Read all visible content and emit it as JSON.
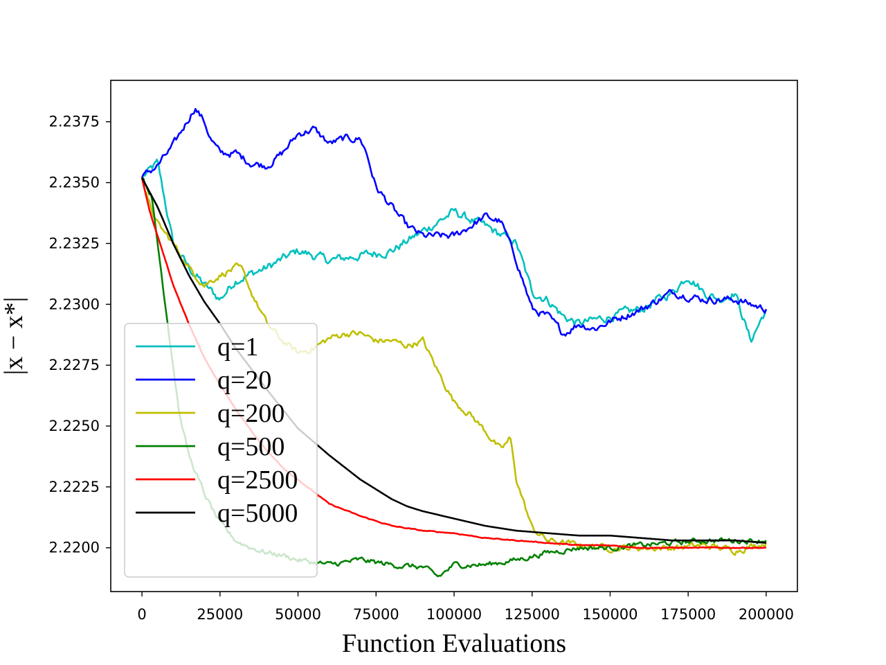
{
  "chart_data": {
    "type": "line",
    "xlabel": "Function Evaluations",
    "ylabel": "|x − x*|",
    "xlim": [
      -10000,
      210000
    ],
    "ylim": [
      2.2182,
      2.2392
    ],
    "xticks": [
      0,
      25000,
      50000,
      75000,
      100000,
      125000,
      150000,
      175000,
      200000
    ],
    "xtick_labels": [
      "0",
      "25000",
      "50000",
      "75000",
      "100000",
      "125000",
      "150000",
      "175000",
      "200000"
    ],
    "yticks": [
      2.22,
      2.2225,
      2.225,
      2.2275,
      2.23,
      2.2325,
      2.235,
      2.2375
    ],
    "ytick_labels": [
      "2.2200",
      "2.2225",
      "2.2250",
      "2.2275",
      "2.2300",
      "2.2325",
      "2.2350",
      "2.2375"
    ],
    "legend_position": "lower-left",
    "grid": false,
    "series": [
      {
        "name": "q=1",
        "color": "#00bfbf",
        "noise": 0.0003,
        "x": [
          0,
          5000,
          10000,
          15000,
          20000,
          25000,
          30000,
          40000,
          50000,
          60000,
          70000,
          80000,
          90000,
          100000,
          110000,
          120000,
          125000,
          130000,
          135000,
          140000,
          150000,
          160000,
          170000,
          175000,
          180000,
          185000,
          190000,
          195000,
          200000
        ],
        "y": [
          2.2352,
          2.2358,
          2.2325,
          2.2315,
          2.2308,
          2.2302,
          2.231,
          2.2315,
          2.2322,
          2.2318,
          2.232,
          2.2322,
          2.233,
          2.2338,
          2.2332,
          2.2325,
          2.2305,
          2.2302,
          2.2295,
          2.2292,
          2.2295,
          2.2298,
          2.2305,
          2.2312,
          2.2305,
          2.2302,
          2.2305,
          2.2285,
          2.2298
        ]
      },
      {
        "name": "q=20",
        "color": "#0000ff",
        "noise": 0.00025,
        "x": [
          0,
          5000,
          10000,
          17000,
          20000,
          22000,
          25000,
          30000,
          35000,
          40000,
          45000,
          50000,
          55000,
          60000,
          65000,
          70000,
          72000,
          75000,
          80000,
          85000,
          90000,
          100000,
          105000,
          110000,
          115000,
          120000,
          125000,
          130000,
          135000,
          140000,
          145000,
          150000,
          160000,
          170000,
          180000,
          190000,
          200000
        ],
        "y": [
          2.2352,
          2.2357,
          2.2365,
          2.2381,
          2.2375,
          2.2368,
          2.2362,
          2.2362,
          2.2358,
          2.2357,
          2.2362,
          2.237,
          2.2372,
          2.2366,
          2.2368,
          2.2368,
          2.2362,
          2.2348,
          2.234,
          2.2332,
          2.2328,
          2.2328,
          2.2332,
          2.2336,
          2.2334,
          2.2318,
          2.2298,
          2.2295,
          2.2288,
          2.2292,
          2.229,
          2.2293,
          2.2298,
          2.2305,
          2.2302,
          2.2302,
          2.2298
        ]
      },
      {
        "name": "q=200",
        "color": "#bfbf00",
        "noise": 0.00022,
        "x": [
          0,
          2000,
          5000,
          10000,
          15000,
          20000,
          25000,
          30000,
          32000,
          35000,
          40000,
          45000,
          50000,
          55000,
          60000,
          65000,
          70000,
          75000,
          80000,
          85000,
          90000,
          95000,
          100000,
          105000,
          110000,
          115000,
          118000,
          120000,
          125000,
          130000,
          140000,
          150000,
          160000,
          170000,
          180000,
          190000,
          200000
        ],
        "y": [
          2.2352,
          2.2342,
          2.2333,
          2.2325,
          2.2315,
          2.2308,
          2.2312,
          2.2315,
          2.2314,
          2.2305,
          2.2292,
          2.2285,
          2.228,
          2.2282,
          2.2286,
          2.2288,
          2.2288,
          2.2285,
          2.2285,
          2.2283,
          2.2285,
          2.2272,
          2.226,
          2.2255,
          2.2248,
          2.224,
          2.2245,
          2.2228,
          2.2208,
          2.2203,
          2.2201,
          2.22,
          2.22,
          2.22,
          2.2201,
          2.2199,
          2.2202
        ]
      },
      {
        "name": "q=500",
        "color": "#008000",
        "noise": 0.00018,
        "x": [
          0,
          3000,
          6000,
          8000,
          10000,
          12000,
          15000,
          20000,
          25000,
          30000,
          35000,
          40000,
          45000,
          50000,
          60000,
          70000,
          80000,
          90000,
          95000,
          100000,
          110000,
          120000,
          130000,
          140000,
          150000,
          160000,
          170000,
          180000,
          190000,
          200000
        ],
        "y": [
          2.2352,
          2.2345,
          2.2315,
          2.2295,
          2.2275,
          2.2255,
          2.2238,
          2.2222,
          2.221,
          2.2203,
          2.22,
          2.2198,
          2.2197,
          2.2195,
          2.2193,
          2.2195,
          2.2193,
          2.2192,
          2.2188,
          2.2193,
          2.2193,
          2.2195,
          2.2198,
          2.22,
          2.22,
          2.2201,
          2.2202,
          2.2203,
          2.2203,
          2.2203
        ]
      },
      {
        "name": "q=2500",
        "color": "#ff0000",
        "noise": 3e-05,
        "x": [
          0,
          2500,
          5000,
          7500,
          10000,
          15000,
          20000,
          25000,
          30000,
          35000,
          40000,
          45000,
          50000,
          55000,
          60000,
          70000,
          80000,
          90000,
          100000,
          110000,
          120000,
          130000,
          140000,
          150000,
          160000,
          170000,
          180000,
          190000,
          200000
        ],
        "y": [
          2.2352,
          2.2338,
          2.2328,
          2.2318,
          2.2308,
          2.2292,
          2.2278,
          2.2267,
          2.2257,
          2.2248,
          2.224,
          2.2233,
          2.2228,
          2.2223,
          2.2218,
          2.2213,
          2.2209,
          2.2207,
          2.2206,
          2.2204,
          2.2203,
          2.2202,
          2.2201,
          2.2201,
          2.22,
          2.22,
          2.22,
          2.22,
          2.22
        ]
      },
      {
        "name": "q=5000",
        "color": "#000000",
        "noise": 0,
        "x": [
          0,
          5000,
          10000,
          15000,
          20000,
          25000,
          30000,
          40000,
          50000,
          60000,
          70000,
          75000,
          80000,
          85000,
          90000,
          100000,
          110000,
          120000,
          130000,
          140000,
          150000,
          160000,
          170000,
          180000,
          190000,
          200000
        ],
        "y": [
          2.2352,
          2.234,
          2.2325,
          2.2312,
          2.2301,
          2.2292,
          2.2282,
          2.2265,
          2.2249,
          2.2238,
          2.2228,
          2.2224,
          2.222,
          2.2217,
          2.2215,
          2.2212,
          2.2209,
          2.2207,
          2.2206,
          2.2205,
          2.2205,
          2.2204,
          2.2203,
          2.2203,
          2.2203,
          2.2202
        ]
      }
    ]
  }
}
